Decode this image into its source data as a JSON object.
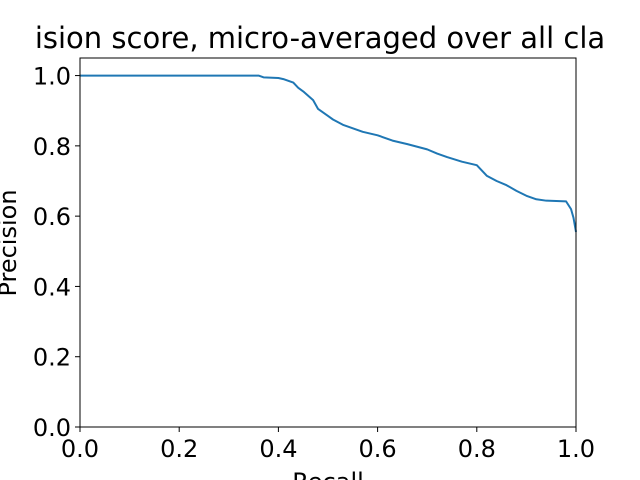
{
  "chart_data": {
    "type": "line",
    "title": "ision score, micro-averaged over all cla",
    "xlabel": "Recall",
    "ylabel": "Precision",
    "xlim": [
      0.0,
      1.0
    ],
    "ylim": [
      0.0,
      1.05
    ],
    "grid": false,
    "x_ticks": [
      "0.0",
      "0.2",
      "0.4",
      "0.6",
      "0.8",
      "1.0"
    ],
    "y_ticks": [
      "0.0",
      "0.2",
      "0.4",
      "0.6",
      "0.8",
      "1.0"
    ],
    "series": [
      {
        "color": "#1f77b4",
        "x": [
          0.0,
          0.1,
          0.2,
          0.3,
          0.36,
          0.37,
          0.4,
          0.41,
          0.43,
          0.44,
          0.45,
          0.47,
          0.48,
          0.49,
          0.5,
          0.51,
          0.53,
          0.55,
          0.57,
          0.6,
          0.63,
          0.66,
          0.7,
          0.72,
          0.74,
          0.77,
          0.8,
          0.81,
          0.82,
          0.84,
          0.86,
          0.88,
          0.9,
          0.92,
          0.94,
          0.96,
          0.98,
          0.99,
          0.995,
          1.0
        ],
        "y": [
          1.0,
          1.0,
          1.0,
          1.0,
          1.0,
          0.995,
          0.993,
          0.99,
          0.98,
          0.965,
          0.955,
          0.93,
          0.905,
          0.895,
          0.885,
          0.875,
          0.86,
          0.85,
          0.84,
          0.83,
          0.815,
          0.805,
          0.79,
          0.778,
          0.768,
          0.755,
          0.745,
          0.73,
          0.715,
          0.7,
          0.688,
          0.672,
          0.658,
          0.648,
          0.644,
          0.643,
          0.642,
          0.62,
          0.595,
          0.555
        ]
      }
    ]
  }
}
